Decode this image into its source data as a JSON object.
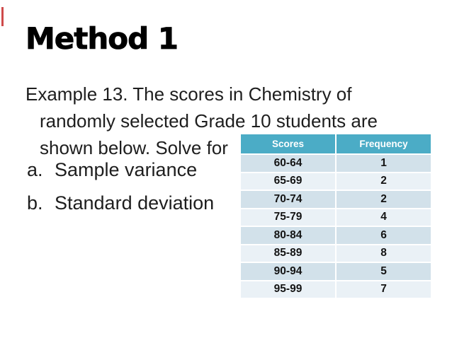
{
  "slide": {
    "title": "Method 1",
    "accent_color": "#cf4a4a",
    "background_color": "#ffffff",
    "text_color": "#1e1e1e"
  },
  "body": {
    "line1": "Example 13. The scores in Chemistry of",
    "line2": "randomly selected Grade 10 students are",
    "line3": "shown below. Solve for",
    "items": [
      {
        "marker": "a.",
        "text": "Sample variance"
      },
      {
        "marker": "b.",
        "text": "Standard deviation"
      }
    ]
  },
  "table": {
    "headers": [
      "Scores",
      "Frequency"
    ],
    "rows": [
      {
        "score": "60-64",
        "frequency": "1"
      },
      {
        "score": "65-69",
        "frequency": "2"
      },
      {
        "score": "70-74",
        "frequency": "2"
      },
      {
        "score": "75-79",
        "frequency": "4"
      },
      {
        "score": "80-84",
        "frequency": "6"
      },
      {
        "score": "85-89",
        "frequency": "8"
      },
      {
        "score": "90-94",
        "frequency": "5"
      },
      {
        "score": "95-99",
        "frequency": "7"
      }
    ],
    "colors": {
      "header_bg": "#4BACC6",
      "header_text": "#ffffff",
      "row_dark": "#D2E1EA",
      "row_light": "#EAF1F6"
    }
  }
}
